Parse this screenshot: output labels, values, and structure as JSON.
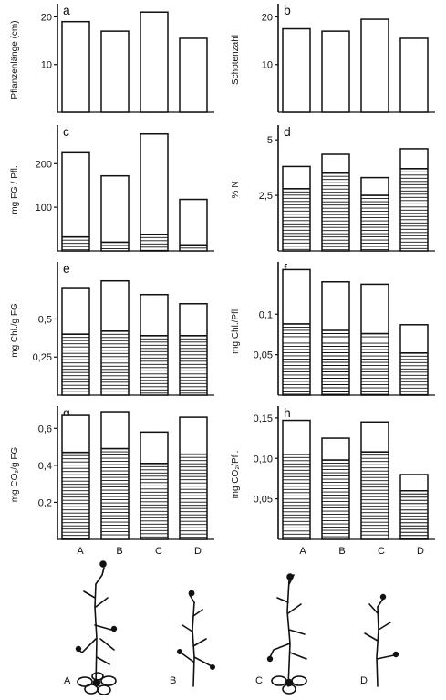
{
  "categories": [
    "A",
    "B",
    "C",
    "D"
  ],
  "colors": {
    "ink": "#111111",
    "paper": "#ffffff"
  },
  "chart_data": [
    {
      "id": "a",
      "type": "bar",
      "panel_letter": "a",
      "ylabel": "Pflanzenlänge (cm)",
      "ylim": [
        0,
        22
      ],
      "ticks": [
        10,
        20
      ],
      "tick_labels": [
        "10",
        "20"
      ],
      "categories": [
        "A",
        "B",
        "C",
        "D"
      ],
      "series": [
        {
          "values": [
            19,
            17,
            21,
            15.5
          ]
        }
      ]
    },
    {
      "id": "b",
      "type": "bar",
      "panel_letter": "b",
      "ylabel": "Schotenzahl",
      "ylim": [
        0,
        22
      ],
      "ticks": [
        10,
        20
      ],
      "tick_labels": [
        "10",
        "20"
      ],
      "categories": [
        "A",
        "B",
        "C",
        "D"
      ],
      "series": [
        {
          "values": [
            17.5,
            17,
            19.5,
            15.5
          ]
        }
      ]
    },
    {
      "id": "c",
      "type": "bar",
      "panel_letter": "c",
      "ylabel": "mg FG / Pfl.",
      "ylim": [
        0,
        280
      ],
      "ticks": [
        100,
        200
      ],
      "tick_labels": [
        "100",
        "200"
      ],
      "categories": [
        "A",
        "B",
        "C",
        "D"
      ],
      "series": [
        {
          "values": [
            225,
            172,
            268,
            118
          ]
        },
        {
          "hatched": true,
          "values": [
            32,
            20,
            38,
            14
          ]
        }
      ]
    },
    {
      "id": "d",
      "type": "bar",
      "panel_letter": "d",
      "ylabel": "% N",
      "ylim": [
        0,
        5.5
      ],
      "ticks": [
        2.5,
        5
      ],
      "tick_labels": [
        "2,5",
        "5"
      ],
      "categories": [
        "A",
        "B",
        "C",
        "D"
      ],
      "series": [
        {
          "values": [
            3.8,
            4.35,
            3.3,
            4.6
          ]
        },
        {
          "hatched": true,
          "values": [
            2.8,
            3.5,
            2.5,
            3.7
          ]
        }
      ]
    },
    {
      "id": "e",
      "type": "bar",
      "panel_letter": "e",
      "ylabel": "mg Chl./g FG",
      "ylim": [
        0,
        0.85
      ],
      "ticks": [
        0.25,
        0.5
      ],
      "tick_labels": [
        "0,25",
        "0,5"
      ],
      "categories": [
        "A",
        "B",
        "C",
        "D"
      ],
      "series": [
        {
          "values": [
            0.7,
            0.75,
            0.66,
            0.6
          ]
        },
        {
          "hatched": true,
          "values": [
            0.4,
            0.42,
            0.39,
            0.39
          ]
        }
      ]
    },
    {
      "id": "f",
      "type": "bar",
      "panel_letter": "f",
      "ylabel": "mg Chl./Pfl.",
      "ylim": [
        0,
        0.16
      ],
      "ticks": [
        0.05,
        0.1
      ],
      "tick_labels": [
        "0,05",
        "0,1"
      ],
      "categories": [
        "A",
        "B",
        "C",
        "D"
      ],
      "series": [
        {
          "values": [
            0.155,
            0.14,
            0.137,
            0.087
          ]
        },
        {
          "hatched": true,
          "values": [
            0.088,
            0.08,
            0.076,
            0.052
          ]
        }
      ]
    },
    {
      "id": "g",
      "type": "bar",
      "panel_letter": "g",
      "ylabel": "mg CO₂/g FG",
      "ylim": [
        0,
        0.7
      ],
      "ticks": [
        0.2,
        0.4,
        0.6
      ],
      "tick_labels": [
        "0,2",
        "0,4",
        "0,6"
      ],
      "categories": [
        "A",
        "B",
        "C",
        "D"
      ],
      "series": [
        {
          "values": [
            0.67,
            0.69,
            0.58,
            0.66
          ]
        },
        {
          "hatched": true,
          "values": [
            0.47,
            0.49,
            0.41,
            0.46
          ]
        }
      ]
    },
    {
      "id": "h",
      "type": "bar",
      "panel_letter": "h",
      "ylabel": "mg CO₂/Pfl.",
      "ylim": [
        0,
        0.16
      ],
      "ticks": [
        0.05,
        0.1,
        0.15
      ],
      "tick_labels": [
        "0,05",
        "0,10",
        "0,15"
      ],
      "categories": [
        "A",
        "B",
        "C",
        "D"
      ],
      "series": [
        {
          "values": [
            0.147,
            0.125,
            0.145,
            0.08
          ]
        },
        {
          "hatched": true,
          "values": [
            0.105,
            0.098,
            0.108,
            0.06
          ]
        }
      ]
    }
  ]
}
